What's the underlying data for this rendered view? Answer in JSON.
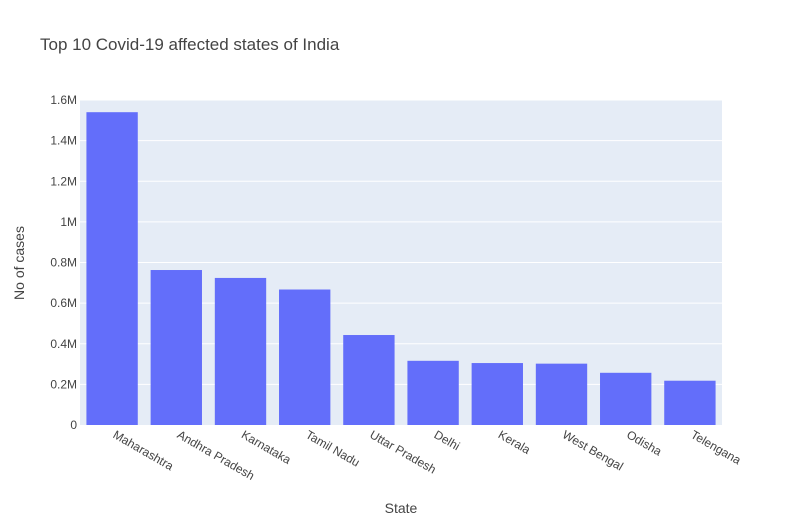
{
  "chart_data": {
    "type": "bar",
    "title": "Top 10 Covid-19 affected states of India",
    "xlabel": "State",
    "ylabel": "No of cases",
    "categories": [
      "Maharashtra",
      "Andhra Pradesh",
      "Karnataka",
      "Tamil Nadu",
      "Uttar Pradesh",
      "Delhi",
      "Kerala",
      "West Bengal",
      "Odisha",
      "Telengana"
    ],
    "values": [
      1540000,
      763000,
      724000,
      667000,
      443000,
      316000,
      305000,
      302000,
      257000,
      218000
    ],
    "ylim": [
      0,
      1600000
    ],
    "yticks": [
      {
        "value": 0,
        "label": "0"
      },
      {
        "value": 200000,
        "label": "0.2M"
      },
      {
        "value": 400000,
        "label": "0.4M"
      },
      {
        "value": 600000,
        "label": "0.6M"
      },
      {
        "value": 800000,
        "label": "0.8M"
      },
      {
        "value": 1000000,
        "label": "1M"
      },
      {
        "value": 1200000,
        "label": "1.2M"
      },
      {
        "value": 1400000,
        "label": "1.4M"
      },
      {
        "value": 1600000,
        "label": "1.6M"
      }
    ],
    "grid": true,
    "colors": {
      "bar": "#636efa",
      "plot_bg": "#e5ecf6",
      "grid": "#ffffff",
      "text": "#444444"
    }
  }
}
